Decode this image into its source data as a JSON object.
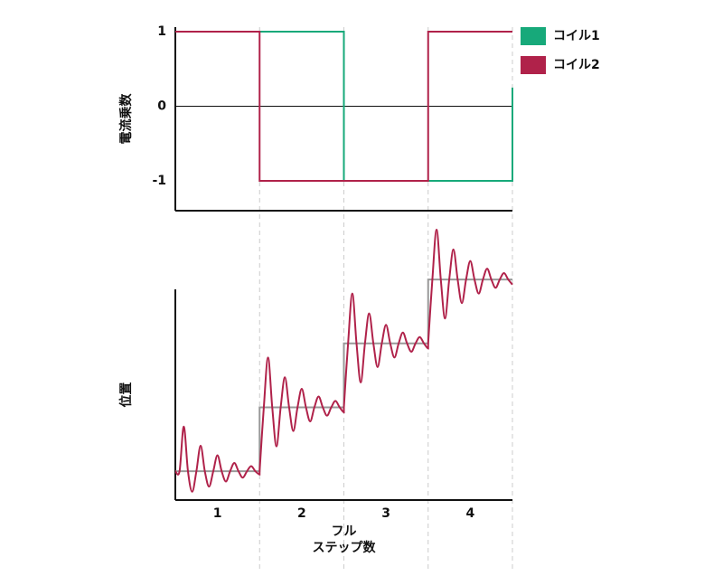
{
  "chart_data": [
    {
      "type": "line",
      "ylabel": "電流乗数",
      "ylim": [
        -1.4,
        1.05
      ],
      "yticks": [
        -1,
        0,
        1
      ],
      "xlim": [
        0.5,
        4.5
      ],
      "legend": "right",
      "series": [
        {
          "name": "コイル1",
          "color": "#17a97a",
          "x": [
            0.5,
            1.5,
            2.5,
            2.5,
            3.5,
            4.5,
            4.5
          ],
          "values": [
            1,
            1,
            1,
            -1,
            -1,
            -1,
            0.25
          ]
        },
        {
          "name": "コイル2",
          "color": "#b0224a",
          "x": [
            0.5,
            1.5,
            1.5,
            2.5,
            3.5,
            3.5,
            4.5
          ],
          "values": [
            1,
            1,
            -1,
            -1,
            -1,
            1,
            1
          ]
        }
      ]
    },
    {
      "type": "line",
      "ylabel": "位置",
      "xlabel": [
        "フル",
        "ステップ数"
      ],
      "xlim": [
        0.5,
        4.5
      ],
      "ylim": [
        0.55,
        4.85
      ],
      "xticks": [
        1,
        2,
        3,
        4
      ],
      "series": [
        {
          "color": "#999999",
          "x": [
            0.5,
            1.5,
            1.5,
            2.5,
            2.5,
            3.5,
            3.5,
            4.5
          ],
          "values": [
            1,
            1,
            2,
            2,
            3,
            3,
            4,
            4
          ]
        },
        {
          "color": "#b0224a",
          "smooth": true,
          "x": [
            0.5,
            0.55,
            0.6,
            0.65,
            0.7,
            0.75,
            0.8,
            0.85,
            0.9,
            0.95,
            1.0,
            1.05,
            1.1,
            1.15,
            1.2,
            1.25,
            1.3,
            1.35,
            1.4,
            1.45,
            1.5,
            1.5,
            1.55,
            1.6,
            1.65,
            1.7,
            1.75,
            1.8,
            1.85,
            1.9,
            1.95,
            2.0,
            2.05,
            2.1,
            2.15,
            2.2,
            2.25,
            2.3,
            2.35,
            2.4,
            2.45,
            2.5,
            2.5,
            2.55,
            2.6,
            2.65,
            2.7,
            2.75,
            2.8,
            2.85,
            2.9,
            2.95,
            3.0,
            3.05,
            3.1,
            3.15,
            3.2,
            3.25,
            3.3,
            3.35,
            3.4,
            3.45,
            3.5,
            3.5,
            3.55,
            3.6,
            3.65,
            3.7,
            3.75,
            3.8,
            3.85,
            3.9,
            3.95,
            4.0,
            4.05,
            4.1,
            4.15,
            4.2,
            4.25,
            4.3,
            4.35,
            4.4,
            4.45,
            4.5
          ],
          "values": [
            1,
            1,
            1.7,
            1,
            0.68,
            1,
            1.4,
            1,
            0.76,
            1,
            1.25,
            1,
            0.84,
            1,
            1.13,
            1,
            0.9,
            1,
            1.08,
            1,
            0.95,
            1,
            2,
            2.78,
            2,
            1.39,
            2,
            2.47,
            2,
            1.63,
            2,
            2.29,
            2,
            1.78,
            2,
            2.17,
            2,
            1.87,
            2,
            2.1,
            2,
            1.92,
            2,
            3,
            3.78,
            3,
            2.39,
            3,
            3.47,
            3,
            2.63,
            3,
            3.29,
            3,
            2.78,
            3,
            3.17,
            3,
            2.87,
            3,
            3.1,
            3,
            2.92,
            3,
            4,
            4.78,
            4,
            3.39,
            4,
            4.47,
            4,
            3.63,
            4,
            4.29,
            4,
            3.78,
            4,
            4.17,
            4,
            3.87,
            4,
            4.1,
            4,
            3.92
          ]
        }
      ]
    }
  ]
}
